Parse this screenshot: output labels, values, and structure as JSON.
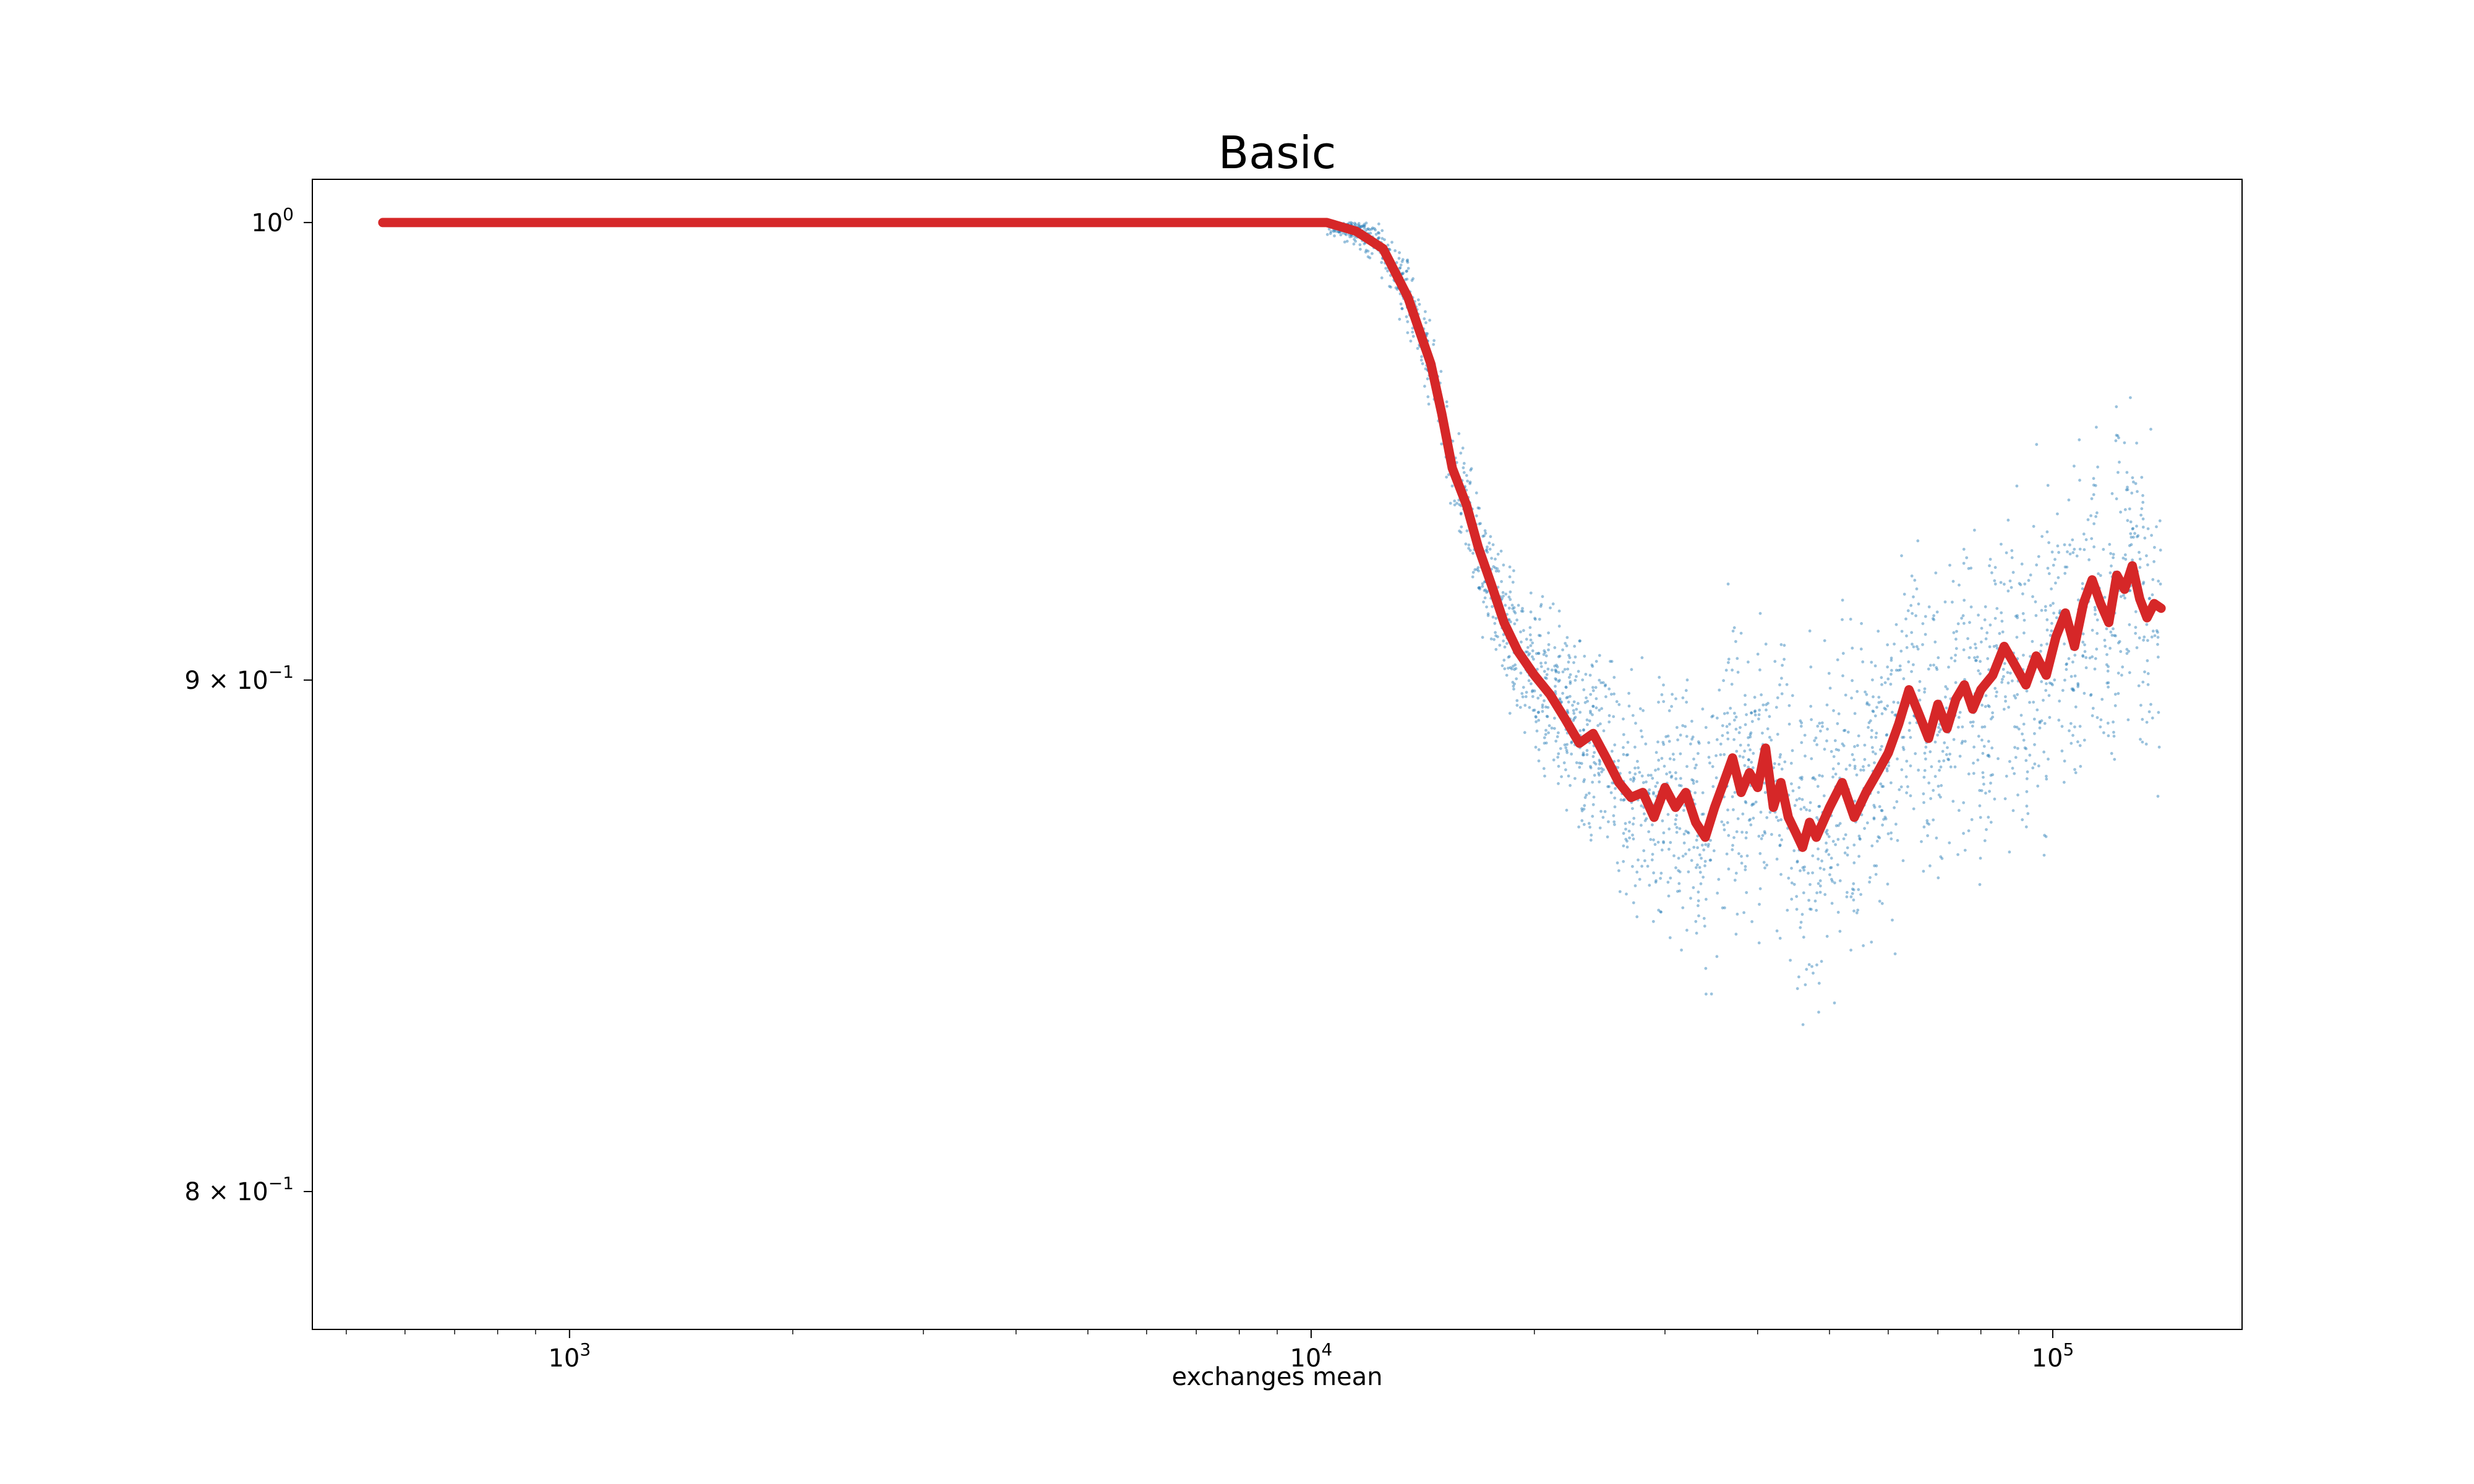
{
  "chart_data": {
    "type": "line",
    "title": "Basic",
    "xlabel": "exchanges mean",
    "ylabel": "",
    "xscale": "log",
    "yscale": "log",
    "xlim": [
      450,
      180000
    ],
    "ylim": [
      0.775,
      1.01
    ],
    "grid": false,
    "x_ticks": [
      {
        "value": 1000,
        "base": "10",
        "exp": "3"
      },
      {
        "value": 10000,
        "base": "10",
        "exp": "4"
      },
      {
        "value": 100000,
        "base": "10",
        "exp": "5"
      }
    ],
    "y_ticks": [
      {
        "value": 1.0,
        "base": "10",
        "exp": "0",
        "mantissa": ""
      },
      {
        "value": 0.9,
        "base": "10",
        "exp": "−1",
        "mantissa": "9 × "
      },
      {
        "value": 0.8,
        "base": "10",
        "exp": "−1",
        "mantissa": "8 × "
      }
    ],
    "series": [
      {
        "style": "line",
        "color": "#d62728",
        "x": [
          560,
          1000,
          2000,
          5000,
          10500,
          11500,
          12500,
          13500,
          14500,
          15000,
          15500,
          16200,
          16800,
          17500,
          18200,
          19000,
          20000,
          21000,
          22000,
          23000,
          24000,
          25000,
          26000,
          27000,
          28000,
          29000,
          30000,
          31000,
          32000,
          33000,
          34000,
          35000,
          36000,
          37000,
          38000,
          39000,
          40000,
          41000,
          42000,
          43000,
          44000,
          45000,
          46000,
          47000,
          48000,
          50000,
          52000,
          54000,
          56000,
          58000,
          60000,
          62000,
          64000,
          66000,
          68000,
          70000,
          72000,
          74000,
          76000,
          78000,
          80000,
          83000,
          86000,
          89000,
          92000,
          95000,
          98000,
          101000,
          104000,
          107000,
          110000,
          113000,
          116000,
          119000,
          122000,
          125000,
          128000,
          131000,
          134000,
          137000,
          140000
        ],
        "y": [
          1.0,
          1.0,
          1.0,
          1.0,
          1.0,
          0.998,
          0.994,
          0.983,
          0.968,
          0.957,
          0.945,
          0.937,
          0.928,
          0.92,
          0.912,
          0.906,
          0.901,
          0.897,
          0.892,
          0.887,
          0.889,
          0.884,
          0.879,
          0.876,
          0.877,
          0.872,
          0.878,
          0.874,
          0.877,
          0.871,
          0.868,
          0.874,
          0.879,
          0.884,
          0.877,
          0.881,
          0.878,
          0.886,
          0.874,
          0.879,
          0.872,
          0.869,
          0.866,
          0.871,
          0.868,
          0.874,
          0.879,
          0.872,
          0.877,
          0.881,
          0.885,
          0.891,
          0.898,
          0.893,
          0.888,
          0.895,
          0.89,
          0.896,
          0.899,
          0.894,
          0.898,
          0.901,
          0.907,
          0.903,
          0.899,
          0.905,
          0.901,
          0.909,
          0.914,
          0.907,
          0.916,
          0.921,
          0.916,
          0.912,
          0.922,
          0.919,
          0.924,
          0.917,
          0.913,
          0.916,
          0.915
        ]
      }
    ]
  }
}
